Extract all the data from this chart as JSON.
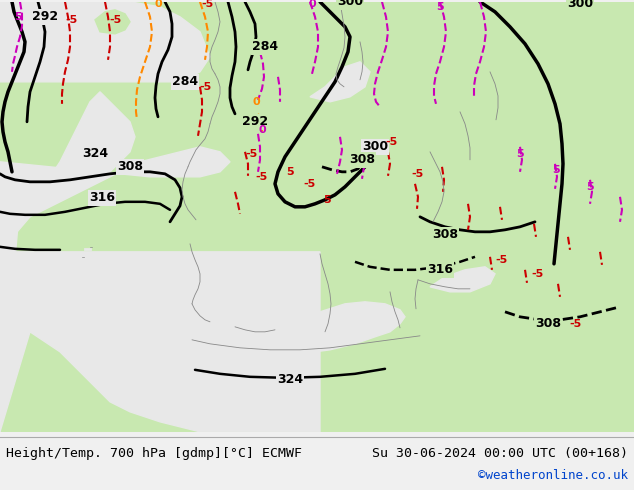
{
  "title_left": "Height/Temp. 700 hPa [gdmp][°C] ECMWF",
  "title_right": "Su 30-06-2024 00:00 UTC (00+168)",
  "credit": "©weatheronline.co.uk",
  "land_color": "#c8e8b0",
  "ocean_color": "#e8e8e8",
  "footer_bg": "#f0f0f0",
  "footer_text_color": "#000000",
  "credit_color": "#0044cc",
  "black": "#000000",
  "red": "#cc0000",
  "orange": "#ff8800",
  "magenta": "#cc00bb",
  "fig_width": 6.34,
  "fig_height": 4.9,
  "dpi": 100
}
